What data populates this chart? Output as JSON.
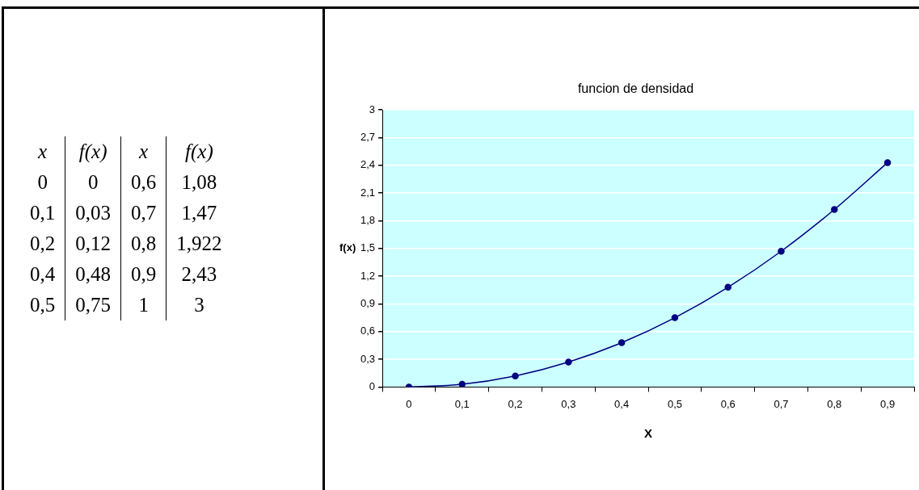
{
  "chart_data": [
    {
      "type": "other",
      "annotations": [
        "x",
        "f(x)",
        "x",
        "f(x)",
        "0",
        "0",
        "0,6",
        "1,08",
        "0,1",
        "0,03",
        "0,7",
        "1,47",
        "0,2",
        "0,12",
        "0,8",
        "1,922",
        "0,4",
        "0,48",
        "0,9",
        "2,43",
        "0,5",
        "0,75",
        "1",
        "3"
      ]
    },
    {
      "type": "line",
      "title": "funcion de densidad",
      "xlabel": "X",
      "ylabel": "f(x)",
      "categories": [
        "0",
        "0,1",
        "0,2",
        "0,3",
        "0,4",
        "0,5",
        "0,6",
        "0,7",
        "0,8",
        "0,9"
      ],
      "values": [
        0,
        0.03,
        0.12,
        0.27,
        0.48,
        0.75,
        1.08,
        1.47,
        1.922,
        2.43
      ],
      "color": "#000080",
      "ylim": [
        0,
        3
      ],
      "yticks": [
        0,
        {
          "value": 0.3,
          "label": "0,3"
        },
        {
          "value": 0.6,
          "label": "0,6"
        },
        {
          "value": 0.9,
          "label": "0,9"
        },
        {
          "value": 1.2,
          "label": "1,2"
        },
        {
          "value": 1.5,
          "label": "1,5"
        },
        {
          "value": 1.8,
          "label": "1,8"
        },
        {
          "value": 2.1,
          "label": "2,1"
        },
        {
          "value": 2.4,
          "label": "2,4"
        },
        {
          "value": 2.7,
          "label": "2,7"
        },
        3
      ],
      "grid": "y",
      "marker": "circle"
    }
  ]
}
